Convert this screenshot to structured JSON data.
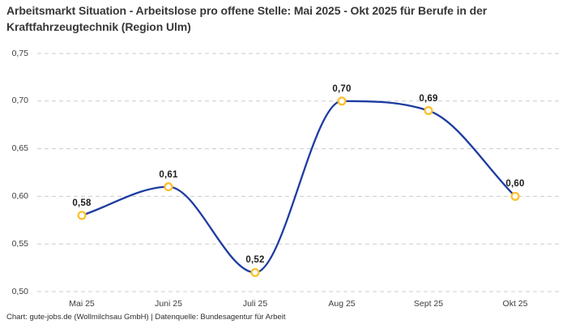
{
  "header": {
    "title": "Arbeitsmarkt Situation - Arbeitslose pro offene Stelle: Mai 2025 - Okt 2025 für Berufe in der Kraftfahrzeugtechnik (Region Ulm)"
  },
  "footer": {
    "text": "Chart: gute-jobs.de (Wollmilchsau GmbH) | Datenquelle: Bundesagentur für Arbeit"
  },
  "chart_data": {
    "type": "line",
    "title": "Arbeitsmarkt Situation - Arbeitslose pro offene Stelle: Mai 2025 - Okt 2025 für Berufe in der Kraftfahrzeugtechnik (Region Ulm)",
    "categories": [
      "Mai 25",
      "Juni 25",
      "Juli 25",
      "Aug 25",
      "Sept 25",
      "Okt 25"
    ],
    "values": [
      0.58,
      0.61,
      0.52,
      0.7,
      0.69,
      0.6
    ],
    "value_labels": [
      "0,58",
      "0,61",
      "0,52",
      "0,70",
      "0,69",
      "0,60"
    ],
    "yticks": [
      0.5,
      0.55,
      0.6,
      0.65,
      0.7,
      0.75
    ],
    "ytick_labels": [
      "0,50",
      "0,55",
      "0,60",
      "0,65",
      "0,70",
      "0,75"
    ],
    "ylim": [
      0.5,
      0.75
    ],
    "xlabel": "",
    "ylabel": "",
    "grid": "horizontal-dashed",
    "legend": "none",
    "curve": "monotone",
    "colors": {
      "line": "#1e3ca0",
      "marker_stroke": "#fbc02d",
      "marker_fill": "#ffffff",
      "grid": "#cccccc",
      "title_text": "#373737",
      "axis_text": "#3d3d3d",
      "value_text": "#1c1c1c",
      "background": "#ffffff"
    }
  }
}
